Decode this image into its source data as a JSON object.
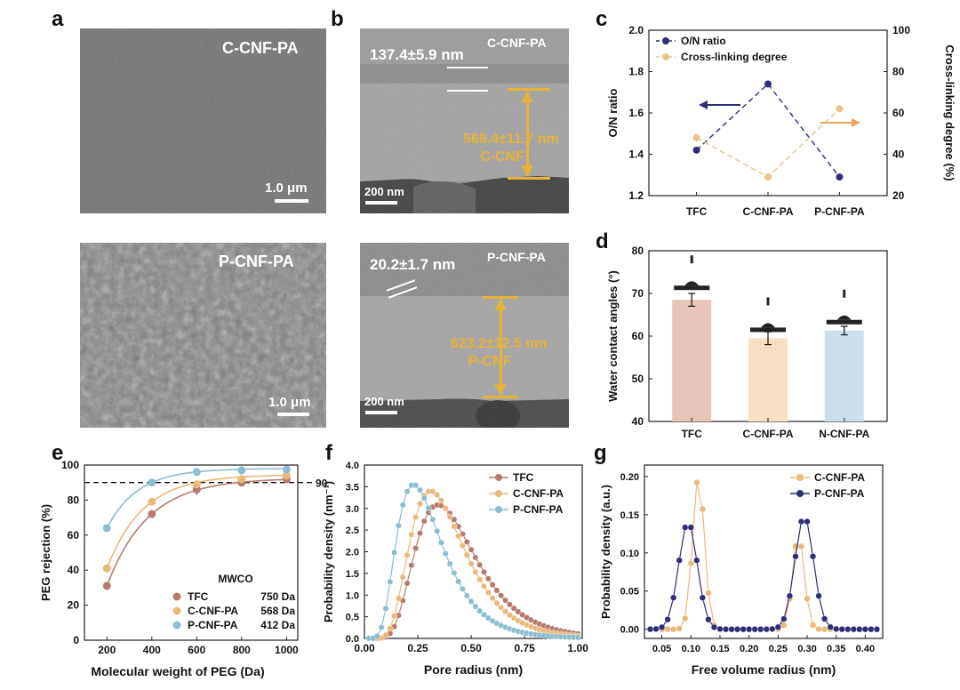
{
  "panels": {
    "a": {
      "letter": "a",
      "top_label": "C-CNF-PA",
      "top_scale": "1.0 μm",
      "bottom_label": "P-CNF-PA",
      "bottom_scale": "1.0 μm"
    },
    "b": {
      "letter": "b",
      "top_label": "C-CNF-PA",
      "top_thickness": "137.4±5.9 nm",
      "top_cnf_thickness": "568.4±11.7 nm",
      "top_cnf_label": "C-CNF",
      "top_scale": "200 nm",
      "bottom_label": "P-CNF-PA",
      "bottom_thickness": "20.2±1.7 nm",
      "bottom_cnf_thickness": "623.2±12.5 nm",
      "bottom_cnf_label": "P-CNF",
      "bottom_scale": "200 nm"
    },
    "c": {
      "letter": "c"
    },
    "d": {
      "letter": "d"
    },
    "e": {
      "letter": "e",
      "mwco_title": "MWCO",
      "ref_label": "90"
    },
    "f": {
      "letter": "f"
    },
    "g": {
      "letter": "g"
    }
  },
  "colors": {
    "tfc": "#b87a6e",
    "c_cnf": "#eab87a",
    "p_cnf": "#8cbdd0",
    "on_ratio": "#2e2e78",
    "xlink": "#e8c48a",
    "bar_tfc": "#e9c4b8",
    "bar_c": "#f7e0c2",
    "bar_n": "#cbe0ec",
    "orange": "#e8b23a"
  },
  "chart_data": [
    {
      "id": "c",
      "type": "line",
      "categories": [
        "TFC",
        "C-CNF-PA",
        "P-CNF-PA"
      ],
      "ylabel": "O/N ratio",
      "ylim": [
        1.2,
        2.0
      ],
      "yticks": [
        "1.2",
        "1.4",
        "1.6",
        "1.8",
        "2.0"
      ],
      "y2label": "Cross-linking degree (%)",
      "y2lim": [
        20,
        100
      ],
      "y2ticks": [
        "20",
        "40",
        "60",
        "80",
        "100"
      ],
      "legend_position": "top-left",
      "series": [
        {
          "name": "O/N ratio",
          "axis": "left",
          "values": [
            1.42,
            1.74,
            1.29
          ]
        },
        {
          "name": "Cross-linking degree",
          "axis": "right",
          "values": [
            48,
            29,
            62
          ]
        }
      ]
    },
    {
      "id": "d",
      "type": "bar",
      "categories": [
        "TFC",
        "C-CNF-PA",
        "N-CNF-PA"
      ],
      "values": [
        68.5,
        59.5,
        61.3
      ],
      "errors": [
        1.5,
        1.5,
        1.0
      ],
      "ylabel": "Water contact angles (°)",
      "ylim": [
        40,
        80
      ],
      "yticks": [
        "40",
        "50",
        "60",
        "70",
        "80"
      ]
    },
    {
      "id": "e",
      "type": "scatter",
      "xlabel": "Molecular weight of PEG (Da)",
      "ylabel": "PEG rejection (%)",
      "xlim": [
        100,
        1050
      ],
      "xticks": [
        "200",
        "400",
        "600",
        "800",
        "1000"
      ],
      "ylim": [
        0,
        100
      ],
      "yticks": [
        "0",
        "20",
        "40",
        "60",
        "80",
        "100"
      ],
      "x": [
        200,
        400,
        600,
        800,
        1000
      ],
      "reference_line": 90,
      "legend_title": "MWCO",
      "series": [
        {
          "name": "TFC",
          "mwco": "750 Da",
          "values": [
            31,
            72,
            86,
            90,
            92
          ],
          "errors": [
            2,
            2,
            3,
            2,
            2
          ]
        },
        {
          "name": "C-CNF-PA",
          "mwco": "568 Da",
          "values": [
            41,
            79,
            89,
            92,
            94
          ],
          "errors": [
            2,
            2,
            2,
            2,
            2
          ]
        },
        {
          "name": "P-CNF-PA",
          "mwco": "412 Da",
          "values": [
            64,
            90,
            96,
            97,
            97.5
          ],
          "errors": [
            2,
            2,
            2,
            1,
            1
          ]
        }
      ]
    },
    {
      "id": "f",
      "type": "line",
      "xlabel": "Pore radius (nm)",
      "ylabel": "Probability density (nm⁻¹)",
      "xlim": [
        0,
        1.02
      ],
      "xticks": [
        "0.00",
        "0.25",
        "0.50",
        "0.75",
        "1.00"
      ],
      "ylim": [
        0,
        4.0
      ],
      "yticks": [
        "0.0",
        "0.5",
        "1.0",
        "1.5",
        "2.0",
        "2.5",
        "3.0",
        "3.5",
        "4.0"
      ],
      "legend_position": "top-right",
      "series": [
        {
          "name": "TFC",
          "peak_x": 0.345,
          "peak_y": 3.08
        },
        {
          "name": "C-CNF-PA",
          "peak_x": 0.31,
          "peak_y": 3.4
        },
        {
          "name": "P-CNF-PA",
          "peak_x": 0.23,
          "peak_y": 3.55
        }
      ]
    },
    {
      "id": "g",
      "type": "line",
      "xlabel": "Free volume radius (nm)",
      "ylabel": "Probability density (a.u.)",
      "xlim": [
        0.02,
        0.43
      ],
      "xticks": [
        "0.05",
        "0.10",
        "0.15",
        "0.20",
        "0.25",
        "0.30",
        "0.35",
        "0.40"
      ],
      "ylim": [
        -0.012,
        0.215
      ],
      "yticks": [
        "0.00",
        "0.05",
        "0.10",
        "0.15",
        "0.20"
      ],
      "legend_position": "top-right",
      "series": [
        {
          "name": "C-CNF-PA",
          "peaks": [
            [
              0.113,
              0.201
            ],
            [
              0.285,
              0.123
            ]
          ]
        },
        {
          "name": "P-CNF-PA",
          "peaks": [
            [
              0.095,
              0.14
            ],
            [
              0.295,
              0.148
            ]
          ]
        }
      ]
    }
  ]
}
